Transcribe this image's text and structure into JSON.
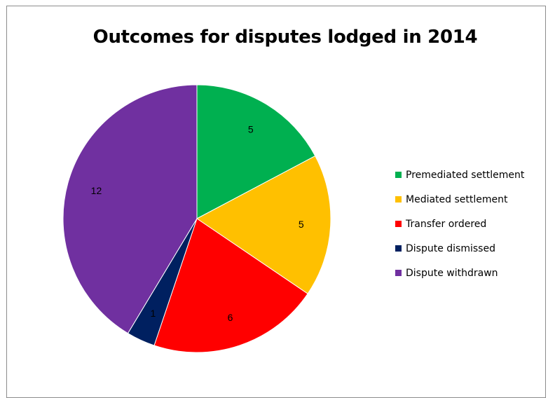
{
  "chart_data": {
    "type": "pie",
    "title": "Outcomes for disputes lodged in 2014",
    "categories": [
      "Premediated settlement",
      "Mediated settlement",
      "Transfer ordered",
      "Dispute dismissed",
      "Dispute withdrawn"
    ],
    "values": [
      5,
      5,
      6,
      1,
      12
    ],
    "colors": [
      "#00b050",
      "#ffc000",
      "#ff0000",
      "#002060",
      "#7030a0"
    ],
    "data_labels": [
      "5",
      "5",
      "6",
      "1",
      "12"
    ],
    "legend_position": "right"
  }
}
